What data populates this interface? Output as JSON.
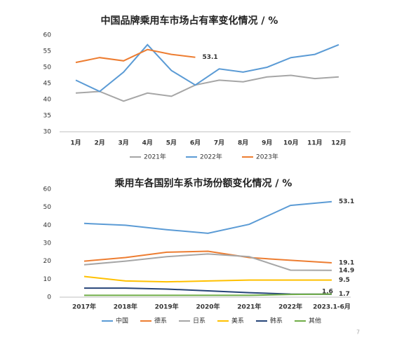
{
  "chart_data": [
    {
      "type": "line",
      "title": "中国品牌乘用车市场占有率变化情况 / %",
      "categories": [
        "1月",
        "2月",
        "3月",
        "4月",
        "5月",
        "6月",
        "7月",
        "8月",
        "9月",
        "10月",
        "11月",
        "12月"
      ],
      "ylim": [
        30,
        60
      ],
      "yticks": [
        30,
        35,
        40,
        45,
        50,
        55,
        60
      ],
      "legend": "bottom",
      "series": [
        {
          "name": "2021年",
          "color": "#a6a6a6",
          "values": [
            42,
            42.5,
            39.5,
            42,
            41,
            44.5,
            46,
            45.5,
            47,
            47.5,
            46.5,
            47
          ]
        },
        {
          "name": "2022年",
          "color": "#5b9bd5",
          "values": [
            46,
            42.5,
            48.5,
            57,
            49,
            44.5,
            49.5,
            48.5,
            50,
            53,
            54,
            57
          ]
        },
        {
          "name": "2023年",
          "color": "#ed7d31",
          "label_last": true,
          "values": [
            51.5,
            53,
            52,
            55.5,
            54,
            53.1,
            null,
            null,
            null,
            null,
            null,
            null
          ]
        }
      ]
    },
    {
      "type": "line",
      "title": "乘用车各国别车系市场份额变化情况 / %",
      "categories": [
        "2017年",
        "2018年",
        "2019年",
        "2020年",
        "2021年",
        "2022年",
        "2023.1-6月"
      ],
      "ylim": [
        0,
        60
      ],
      "yticks": [
        0,
        10,
        20,
        30,
        40,
        50,
        60
      ],
      "legend": "bottom",
      "series": [
        {
          "name": "中国",
          "color": "#5b9bd5",
          "label_last": true,
          "values": [
            41,
            40,
            37.5,
            35.5,
            40.5,
            51,
            53.1
          ]
        },
        {
          "name": "德系",
          "color": "#ed7d31",
          "label_last": true,
          "values": [
            20,
            22,
            25,
            25.5,
            22,
            20.5,
            19.1
          ]
        },
        {
          "name": "日系",
          "color": "#a6a6a6",
          "label_last": true,
          "values": [
            18,
            20,
            22.5,
            24,
            22.5,
            15,
            14.9
          ]
        },
        {
          "name": "美系",
          "color": "#ffc000",
          "label_last": true,
          "values": [
            11.5,
            9,
            8.5,
            9,
            9.5,
            9.5,
            9.5
          ]
        },
        {
          "name": "韩系",
          "color": "#264478",
          "label_last": true,
          "values": [
            5,
            5,
            4.5,
            3.5,
            2.5,
            1.7,
            1.6
          ]
        },
        {
          "name": "其他",
          "color": "#70ad47",
          "label_last": true,
          "values": [
            1,
            1,
            1,
            1,
            1,
            1.5,
            1.7
          ]
        }
      ]
    }
  ],
  "page_number": "7"
}
